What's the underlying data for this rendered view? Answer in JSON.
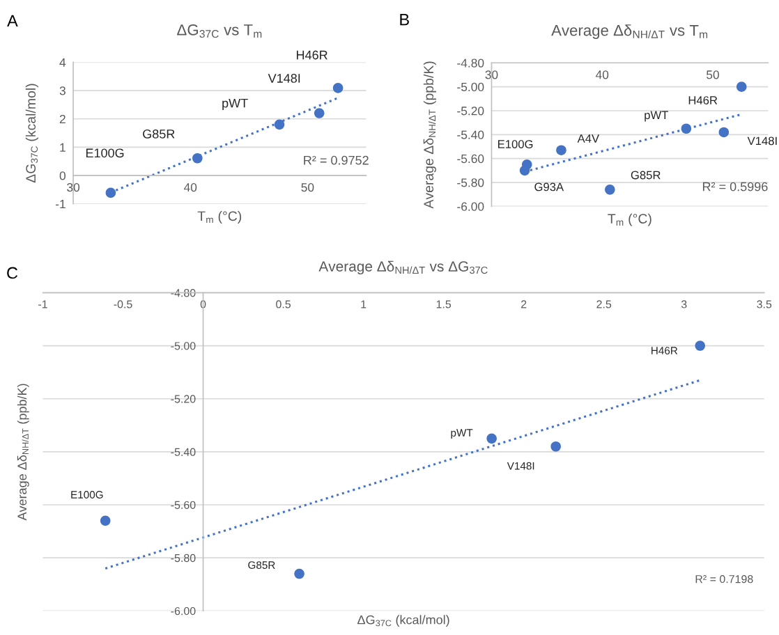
{
  "chart_data": [
    {
      "type": "scatter",
      "title": "ΔG$_{37C}$ vs T$_{m}$",
      "xlabel": "T$_{m}$ (°C)",
      "ylabel": "ΔG$_{37C}$ (kcal/mol)",
      "xlim": [
        30,
        55
      ],
      "xticks": [
        30,
        40,
        50
      ],
      "ylim": [
        -1,
        4
      ],
      "yticks": [
        -1,
        0,
        1,
        2,
        3,
        4
      ],
      "grid": "y",
      "marker": "circle",
      "series": [
        {
          "color": "#4472c4",
          "x": [
            33.2,
            40.6,
            47.6,
            51.0,
            52.6
          ],
          "values": [
            -0.61,
            0.61,
            1.8,
            2.2,
            3.09
          ]
        },
        {
          "type": "line",
          "line_style": "dotted",
          "marker": "none",
          "color": "#4472c4",
          "x": [
            33.2,
            52.6
          ],
          "values": [
            -0.6,
            2.74
          ]
        }
      ],
      "annotations": [
        {
          "text": "E100G",
          "x": 33.2,
          "y": -0.61
        },
        {
          "text": "G85R",
          "x": 40.6,
          "y": 0.61
        },
        {
          "text": "pWT",
          "x": 47.6,
          "y": 1.8
        },
        {
          "text": "V148I",
          "x": 51.0,
          "y": 2.2
        },
        {
          "text": "H46R",
          "x": 52.6,
          "y": 3.09
        },
        "R² = 0.9752",
        "A"
      ]
    },
    {
      "type": "scatter",
      "title": "Average Δδ$_{NH/ΔT}$ vs T$_{m}$",
      "xlabel": "T$_{m}$ (°C)",
      "ylabel": "Average Δδ$_{NH/ΔT}$ (ppb/K)",
      "xlim": [
        30,
        55
      ],
      "xticks": [
        30,
        40,
        50
      ],
      "ylim": [
        -6.0,
        -4.8
      ],
      "yticks": [
        {
          "value": -6.0,
          "label": "-6.00"
        },
        {
          "value": -5.8,
          "label": "-5.80"
        },
        {
          "value": -5.6,
          "label": "-5.60"
        },
        {
          "value": -5.4,
          "label": "-5.40"
        },
        {
          "value": -5.2,
          "label": "-5.20"
        },
        {
          "value": -5.0,
          "label": "-5.00"
        },
        {
          "value": -4.8,
          "label": "-4.80"
        }
      ],
      "grid": "y",
      "marker": "circle",
      "series": [
        {
          "color": "#4472c4",
          "x": [
            33.2,
            33.0,
            36.3,
            40.7,
            47.6,
            51.0,
            52.6
          ],
          "values": [
            -5.65,
            -5.7,
            -5.53,
            -5.86,
            -5.35,
            -5.38,
            -5.0
          ]
        },
        {
          "type": "line",
          "line_style": "dotted",
          "marker": "none",
          "color": "#4472c4",
          "x": [
            33.0,
            52.6
          ],
          "values": [
            -5.71,
            -5.23
          ]
        }
      ],
      "annotations": [
        {
          "text": "E100G",
          "x": 33.2,
          "y": -5.65
        },
        {
          "text": "G93A",
          "x": 33.0,
          "y": -5.7
        },
        {
          "text": "A4V",
          "x": 36.3,
          "y": -5.53
        },
        {
          "text": "G85R",
          "x": 40.7,
          "y": -5.86
        },
        {
          "text": "pWT",
          "x": 47.6,
          "y": -5.35
        },
        {
          "text": "V148I",
          "x": 51.0,
          "y": -5.38
        },
        {
          "text": "H46R",
          "x": 52.6,
          "y": -5.0
        },
        "R² = 0.5996",
        "B"
      ]
    },
    {
      "type": "scatter",
      "title": "Average Δδ$_{NH/ΔT}$ vs ΔG$_{37C}$",
      "xlabel": "ΔG$_{37C}$ (kcal/mol)",
      "ylabel": "Average Δδ$_{NH/ΔT}$ (ppb/K)",
      "xlim": [
        -1,
        3.5
      ],
      "xticks": [
        -1,
        -0.5,
        0,
        0.5,
        1,
        1.5,
        2,
        2.5,
        3,
        3.5
      ],
      "ylim": [
        -6.0,
        -4.8
      ],
      "yticks": [
        {
          "value": -6.0,
          "label": "-6.00"
        },
        {
          "value": -5.8,
          "label": "-5.80"
        },
        {
          "value": -5.6,
          "label": "-5.60"
        },
        {
          "value": -5.4,
          "label": "-5.40"
        },
        {
          "value": -5.2,
          "label": "-5.20"
        },
        {
          "value": -5.0,
          "label": "-5.00"
        },
        {
          "value": -4.8,
          "label": "-4.80"
        }
      ],
      "grid": "y",
      "marker": "circle",
      "series": [
        {
          "color": "#4472c4",
          "x": [
            -0.61,
            0.6,
            1.8,
            2.2,
            3.1
          ],
          "values": [
            -5.66,
            -5.86,
            -5.35,
            -5.38,
            -5.0
          ]
        },
        {
          "type": "line",
          "line_style": "dotted",
          "marker": "none",
          "color": "#4472c4",
          "x": [
            -0.61,
            3.1
          ],
          "values": [
            -5.84,
            -5.13
          ]
        }
      ],
      "annotations": [
        {
          "text": "E100G",
          "x": -0.61,
          "y": -5.66
        },
        {
          "text": "G85R",
          "x": 0.6,
          "y": -5.86
        },
        {
          "text": "pWT",
          "x": 1.8,
          "y": -5.35
        },
        {
          "text": "V148I",
          "x": 2.2,
          "y": -5.38
        },
        {
          "text": "H46R",
          "x": 3.1,
          "y": -5.0
        },
        "R² = 0.7198",
        "C"
      ]
    }
  ]
}
